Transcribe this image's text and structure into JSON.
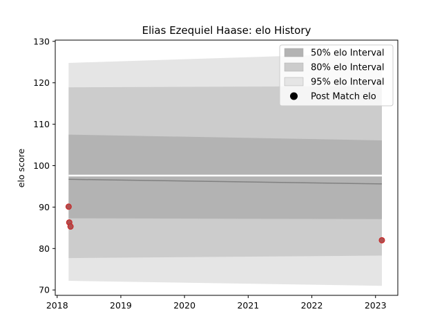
{
  "chart_data": {
    "type": "area",
    "title": "Elias Ezequiel Haase: elo History",
    "xlabel": "",
    "ylabel": "elo score",
    "xlim": [
      2017.97,
      2023.35
    ],
    "ylim": [
      68.7,
      130.3
    ],
    "x_ticks": [
      2018,
      2019,
      2020,
      2021,
      2022,
      2023
    ],
    "y_ticks": [
      70,
      80,
      90,
      100,
      110,
      120,
      130
    ],
    "grid": false,
    "legend_position": "top-right",
    "legend": [
      {
        "label": "50% elo Interval",
        "color": "#b3b3b3"
      },
      {
        "label": "80% elo Interval",
        "color": "#cccccc"
      },
      {
        "label": "95% elo Interval",
        "color": "#e5e5e5"
      },
      {
        "label": "Post Match elo",
        "color": "#000000"
      }
    ],
    "band_x": [
      2018.18,
      2023.1
    ],
    "bands": [
      {
        "level": "95%",
        "upper": [
          124.8,
          127.2
        ],
        "lower": [
          72.2,
          71.0
        ],
        "color": "#e5e5e5"
      },
      {
        "level": "80%",
        "upper": [
          118.9,
          119.2
        ],
        "lower": [
          77.7,
          78.3
        ],
        "color": "#cccccc"
      },
      {
        "level": "50%",
        "upper": [
          107.5,
          106.1
        ],
        "lower": [
          87.3,
          87.1
        ],
        "color": "#b3b3b3"
      }
    ],
    "mean_line": {
      "x": [
        2018.18,
        2023.1
      ],
      "y": [
        96.7,
        95.6
      ],
      "color": "#808080"
    },
    "white_line": {
      "x": [
        2018.18,
        2023.1
      ],
      "y": [
        97.6,
        97.6
      ]
    },
    "points": [
      {
        "x": 2018.18,
        "y": 90.1
      },
      {
        "x": 2018.19,
        "y": 86.3
      },
      {
        "x": 2018.21,
        "y": 85.3
      },
      {
        "x": 2023.1,
        "y": 82.0
      }
    ],
    "point_fill": "#b05050",
    "point_edge": "#cc2222"
  }
}
